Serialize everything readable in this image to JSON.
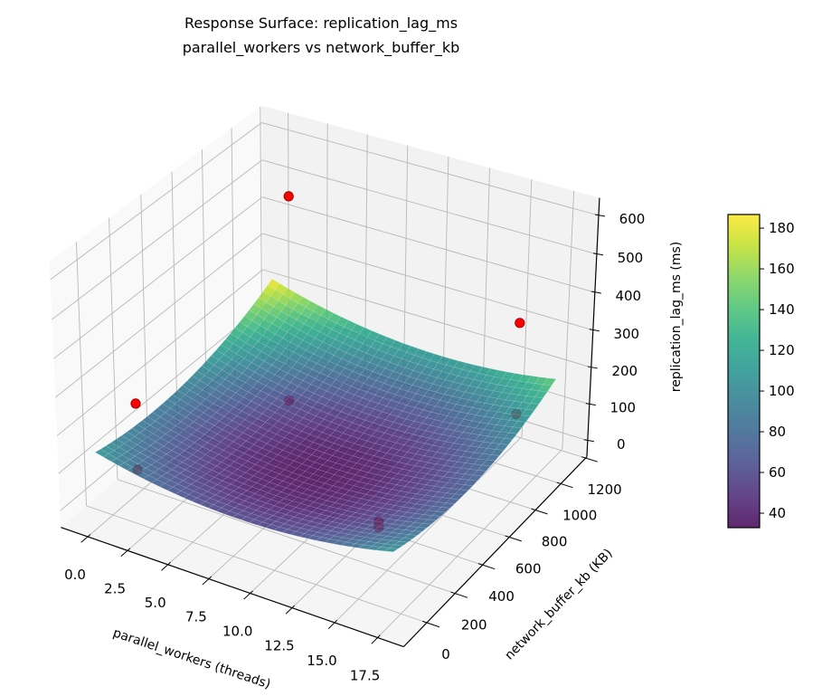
{
  "chart_data": {
    "type": "surface3d",
    "title": "Response Surface: replication_lag_ms",
    "subtitle": "parallel_workers vs network_buffer_kb",
    "xlabel": "parallel_workers (threads)",
    "ylabel": "network_buffer_kb (KB)",
    "zlabel": "replication_lag_ms (ms)",
    "view": {
      "elev": 30,
      "azim": -60
    },
    "xlim": [
      -1.7,
      19.0
    ],
    "ylim": [
      -160,
      1210
    ],
    "zlim": [
      -45,
      645
    ],
    "grid": true,
    "xticks": [
      0,
      2.5,
      5,
      7.5,
      10,
      12.5,
      15,
      17.5
    ],
    "xtick_labels": [
      "0.0",
      "2.5",
      "5.0",
      "7.5",
      "10.0",
      "12.5",
      "15.0",
      "17.5"
    ],
    "yticks": [
      0,
      200,
      400,
      600,
      800,
      1000,
      1200
    ],
    "ytick_labels": [
      "0",
      "200",
      "400",
      "600",
      "800",
      "1000",
      "1200"
    ],
    "zticks": [
      0,
      100,
      200,
      300,
      400,
      500,
      600
    ],
    "ztick_labels": [
      "0",
      "100",
      "200",
      "300",
      "400",
      "500",
      "600"
    ],
    "surface": {
      "colormap": "viridis",
      "alpha": 0.85,
      "x": [
        -1,
        2,
        5,
        8,
        11,
        14,
        17
      ],
      "y": [
        0,
        200,
        400,
        600,
        800,
        1000,
        1200
      ],
      "z": [
        [
          110.0,
          94.9,
          90.9,
          98.0,
          116.2,
          145.6,
          186.0
        ],
        [
          82.2,
          66.0,
          60.8,
          66.8,
          83.9,
          112.1,
          151.4
        ],
        [
          65.6,
          48.2,
          41.9,
          46.7,
          62.7,
          89.7,
          127.9
        ],
        [
          60.0,
          41.5,
          34.1,
          37.8,
          52.6,
          78.5,
          115.5
        ],
        [
          65.6,
          45.9,
          37.3,
          39.9,
          53.6,
          78.3,
          114.2
        ],
        [
          82.2,
          61.4,
          51.7,
          53.1,
          65.7,
          89.3,
          124.1
        ],
        [
          110.0,
          88.1,
          77.2,
          77.5,
          88.9,
          111.4,
          145.0
        ]
      ]
    },
    "points": {
      "color": "#ff0000",
      "edge_color": "#8b0000",
      "x": [
        1,
        1,
        4,
        4,
        16,
        16,
        14,
        14
      ],
      "y": [
        64,
        64,
        768,
        768,
        1024,
        1024,
        256,
        256
      ],
      "z": [
        70,
        245,
        55,
        600,
        95,
        340,
        50,
        35
      ]
    },
    "colorbar": {
      "min": 32.9,
      "max": 186.7,
      "ticks": [
        40,
        60,
        80,
        100,
        120,
        140,
        160,
        180
      ],
      "tick_labels": [
        "40",
        "60",
        "80",
        "100",
        "120",
        "140",
        "160",
        "180"
      ]
    },
    "colors": {
      "pane_x": "#f9f9f9",
      "pane_y": "#f2f2f2",
      "pane_z": "#f5f5f5",
      "grid": "#b8b8b8"
    }
  }
}
